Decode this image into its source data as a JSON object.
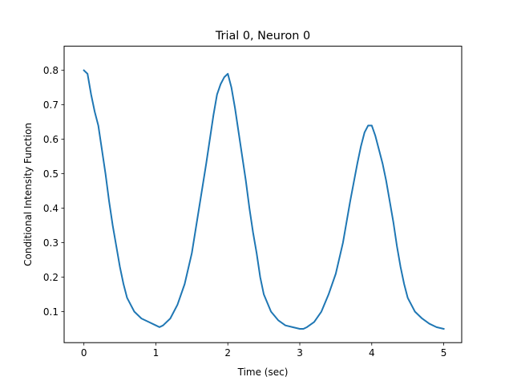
{
  "chart_data": {
    "type": "line",
    "title": "Trial 0, Neuron 0",
    "xlabel": "Time (sec)",
    "ylabel": "Conditional Intensity Function",
    "xlim": [
      -0.275,
      5.25
    ],
    "ylim": [
      0.01,
      0.87
    ],
    "xticks": [
      0,
      1,
      2,
      3,
      4,
      5
    ],
    "yticks": [
      0.1,
      0.2,
      0.3,
      0.4,
      0.5,
      0.6,
      0.7,
      0.8
    ],
    "xtick_labels": [
      "0",
      "1",
      "2",
      "3",
      "4",
      "5"
    ],
    "ytick_labels": [
      "0.1",
      "0.2",
      "0.3",
      "0.4",
      "0.5",
      "0.6",
      "0.7",
      "0.8"
    ],
    "grid": false,
    "legend": "none",
    "series": [
      {
        "color": "#1f77b4",
        "line_width": 2,
        "x": [
          0.0,
          0.05,
          0.1,
          0.15,
          0.2,
          0.25,
          0.3,
          0.35,
          0.4,
          0.45,
          0.5,
          0.55,
          0.6,
          0.65,
          0.7,
          0.8,
          0.9,
          1.0,
          1.05,
          1.1,
          1.2,
          1.3,
          1.4,
          1.5,
          1.6,
          1.7,
          1.8,
          1.85,
          1.9,
          1.95,
          2.0,
          2.05,
          2.1,
          2.15,
          2.2,
          2.25,
          2.3,
          2.35,
          2.4,
          2.45,
          2.5,
          2.6,
          2.7,
          2.8,
          2.9,
          3.0,
          3.05,
          3.1,
          3.2,
          3.3,
          3.4,
          3.5,
          3.6,
          3.7,
          3.8,
          3.85,
          3.9,
          3.95,
          4.0,
          4.05,
          4.1,
          4.15,
          4.2,
          4.25,
          4.3,
          4.35,
          4.4,
          4.45,
          4.5,
          4.6,
          4.7,
          4.8,
          4.9,
          5.0
        ],
        "y": [
          0.8,
          0.79,
          0.73,
          0.68,
          0.64,
          0.57,
          0.5,
          0.42,
          0.35,
          0.29,
          0.23,
          0.18,
          0.14,
          0.12,
          0.1,
          0.08,
          0.07,
          0.06,
          0.055,
          0.06,
          0.08,
          0.12,
          0.18,
          0.27,
          0.4,
          0.53,
          0.67,
          0.73,
          0.76,
          0.78,
          0.79,
          0.75,
          0.69,
          0.62,
          0.55,
          0.48,
          0.4,
          0.33,
          0.27,
          0.2,
          0.15,
          0.1,
          0.075,
          0.06,
          0.055,
          0.05,
          0.05,
          0.055,
          0.07,
          0.1,
          0.15,
          0.21,
          0.3,
          0.42,
          0.53,
          0.58,
          0.62,
          0.64,
          0.64,
          0.61,
          0.57,
          0.53,
          0.48,
          0.42,
          0.36,
          0.29,
          0.23,
          0.18,
          0.14,
          0.1,
          0.08,
          0.065,
          0.055,
          0.05
        ]
      }
    ]
  }
}
